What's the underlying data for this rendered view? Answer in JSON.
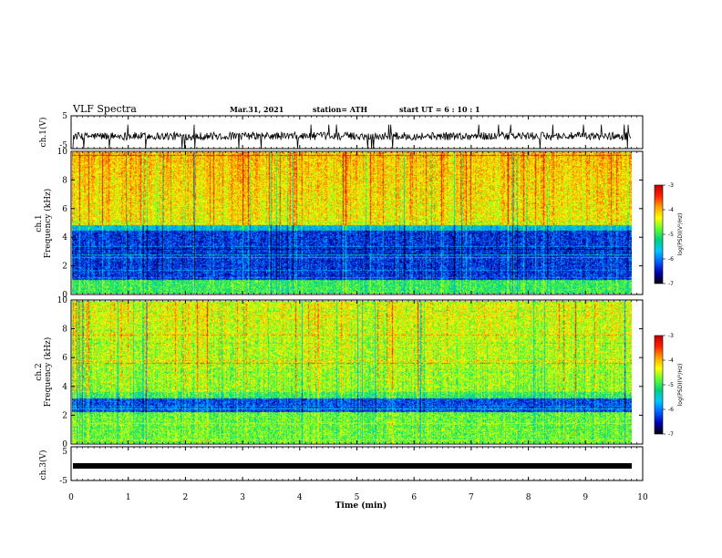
{
  "header": {
    "title": "VLF Spectra",
    "date": "Mar.31, 2021",
    "station": "station= ATH",
    "start": "start  UT =   6  : 10 : 1"
  },
  "colorbar": {
    "label": "log(PSD)(V²/Hz)",
    "ticks": [
      "-3",
      "-4",
      "-5",
      "-6",
      "-7"
    ],
    "colors": [
      "#c00000",
      "#ff2000",
      "#ffa000",
      "#ffff00",
      "#60ff30",
      "#00d080",
      "#00c8ff",
      "#0060ff",
      "#0000b0",
      "#000000"
    ]
  },
  "chart_data": [
    {
      "type": "line",
      "name": "ch1-waveform",
      "ylabel": "ch.1(V)",
      "ylim": [
        -5,
        5
      ],
      "yticks": [
        "5",
        "-5"
      ],
      "xlim": [
        0,
        10
      ],
      "baseline": -1.2,
      "spread": 1.2
    },
    {
      "type": "heatmap",
      "name": "ch1-spectrogram",
      "ylabel": "ch.1\nFrequency (kHz)",
      "ylabel_line1": "ch.1",
      "ylabel_line2": "Frequency (kHz)",
      "ylim": [
        0,
        10
      ],
      "yticks": [
        "0",
        "2",
        "4",
        "6",
        "8",
        "10"
      ],
      "xlim": [
        0,
        9.8
      ],
      "zlim": [
        -7,
        -3
      ],
      "zlabel": "log(PSD)(V²/Hz)",
      "upper_level": -4.3,
      "mid_level": -5.6,
      "low_band_kHz": [
        1,
        4.5
      ],
      "low_band_level": -6.3,
      "bottom_level": -5.0
    },
    {
      "type": "heatmap",
      "name": "ch2-spectrogram",
      "ylabel": "ch.2\nFrequency (kHz)",
      "ylabel_line1": "ch.2",
      "ylabel_line2": "Frequency (kHz)",
      "ylim": [
        0,
        10
      ],
      "yticks": [
        "0",
        "2",
        "4",
        "6",
        "8",
        "10"
      ],
      "xlim": [
        0,
        9.8
      ],
      "zlim": [
        -7,
        -3
      ],
      "zlabel": "log(PSD)(V²/Hz)",
      "upper_level": -4.6,
      "mid_level": -5.0,
      "low_band_kHz": [
        2.2,
        3.2
      ],
      "low_band_level": -6.2,
      "bottom_level": -4.8
    },
    {
      "type": "line",
      "name": "ch3-waveform",
      "ylabel": "ch.3(V)",
      "ylim": [
        -5,
        5
      ],
      "yticks": [
        "5",
        "-5"
      ],
      "xlim": [
        0,
        10
      ],
      "baseline": 0,
      "spread": 0.15
    }
  ],
  "xaxis": {
    "label": "Time (min)",
    "range": [
      0,
      10
    ],
    "ticks": [
      "0",
      "1",
      "2",
      "3",
      "4",
      "5",
      "6",
      "7",
      "8",
      "9",
      "10"
    ]
  }
}
